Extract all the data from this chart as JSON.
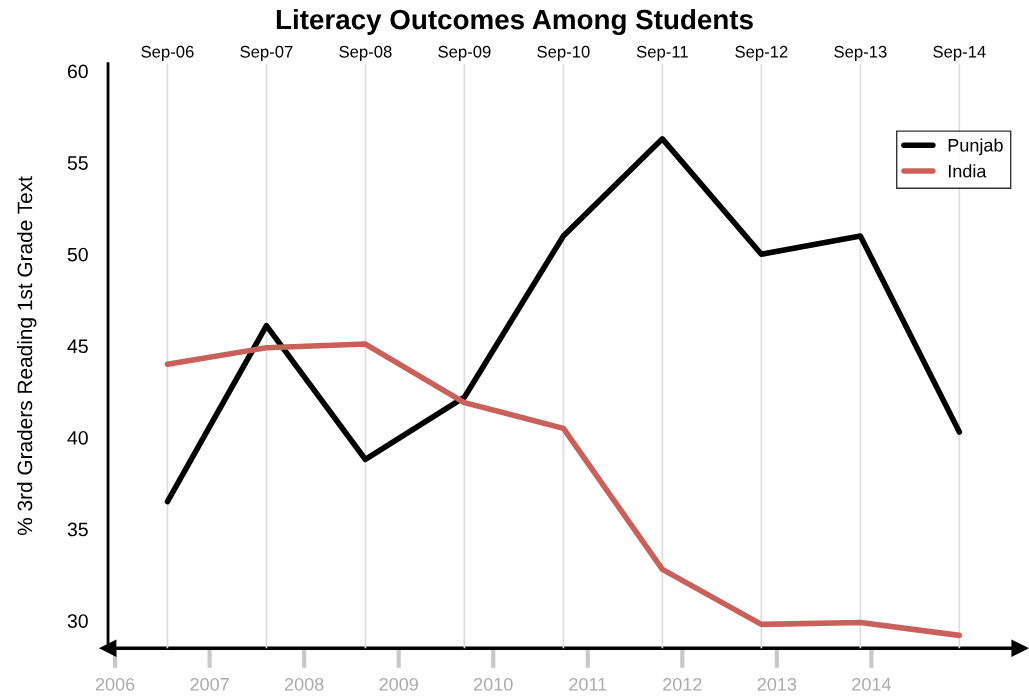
{
  "chart_data": {
    "type": "line",
    "title": "Literacy Outcomes Among Students",
    "ylabel": "% 3rd Graders Reading 1st Grade Text",
    "categories": [
      "Sep-06",
      "Sep-07",
      "Sep-08",
      "Sep-09",
      "Sep-10",
      "Sep-11",
      "Sep-12",
      "Sep-13",
      "Sep-14"
    ],
    "series": [
      {
        "name": "Punjab",
        "color": "#000000",
        "values": [
          36.5,
          46.1,
          38.8,
          42.2,
          51.0,
          56.3,
          50.0,
          51.0,
          40.3
        ]
      },
      {
        "name": "India",
        "color": "#c9605a",
        "values": [
          44.0,
          44.9,
          45.1,
          41.9,
          40.5,
          32.8,
          29.8,
          29.9,
          29.2
        ]
      }
    ],
    "annotations": [
      "2006",
      "2007",
      "2008",
      "2009",
      "2010",
      "2011",
      "2012",
      "2013",
      "2014"
    ],
    "ylim": [
      28.5,
      60.4
    ],
    "yticks": [
      30,
      35,
      40,
      45,
      50,
      55,
      60
    ],
    "grid": "x",
    "legend": "top right",
    "line_style": "solid",
    "marker": "none"
  }
}
